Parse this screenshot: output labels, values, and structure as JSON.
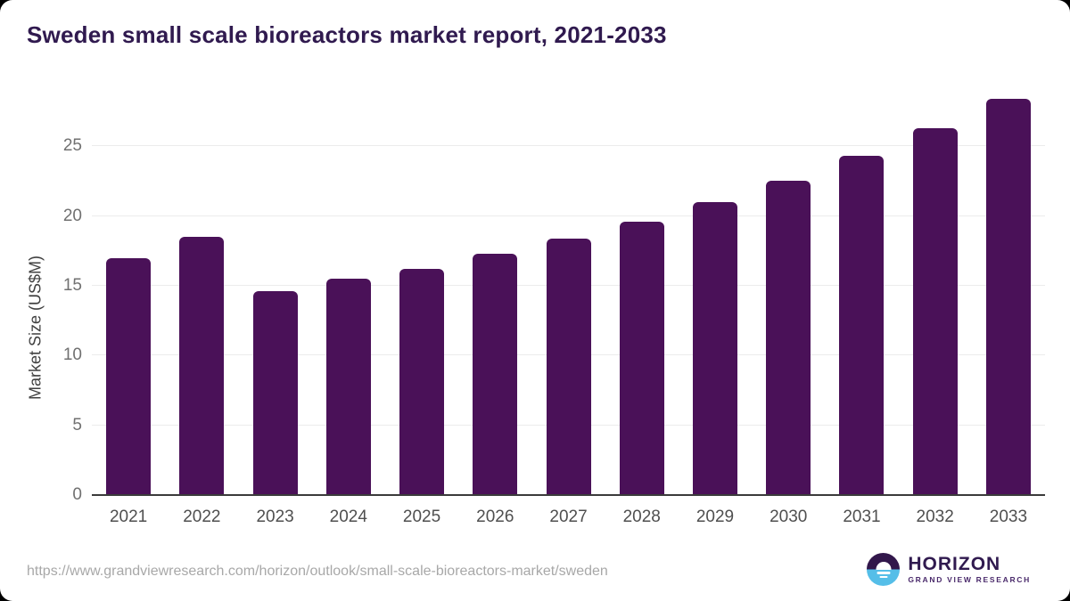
{
  "page": {
    "title": "Sweden small scale bioreactors market report, 2021-2033"
  },
  "chart_data": {
    "type": "bar",
    "title": "Sweden small scale bioreactors market report, 2021-2033",
    "categories": [
      "2021",
      "2022",
      "2023",
      "2024",
      "2025",
      "2026",
      "2027",
      "2028",
      "2029",
      "2030",
      "2031",
      "2032",
      "2033"
    ],
    "values": [
      17.0,
      18.5,
      14.6,
      15.5,
      16.2,
      17.3,
      18.4,
      19.6,
      21.0,
      22.5,
      24.3,
      26.3,
      28.4
    ],
    "series_name": "Market Size",
    "xlabel": "",
    "ylabel": "Market Size (US$M)",
    "ylim": [
      0,
      29.1
    ],
    "yticks": [
      0,
      5,
      10,
      15,
      20,
      25
    ],
    "grid": true,
    "legend": "none",
    "bar_color": "#4a1158"
  },
  "footer": {
    "source_url": "https://www.grandviewresearch.com/horizon/outlook/small-scale-bioreactors-market/sweden",
    "logo": {
      "brand": "HORIZON",
      "tagline": "GRAND VIEW RESEARCH"
    }
  },
  "colors": {
    "bar": "#4a1158",
    "title_text": "#301a4f",
    "gridline": "#ececec",
    "axis_line": "#3b3b3b",
    "y_tick_label": "#707070",
    "x_tick_label": "#4f4f4f",
    "url_text": "#a8a8a8",
    "logo_purple": "#32174b",
    "logo_blue": "#55bee8"
  }
}
